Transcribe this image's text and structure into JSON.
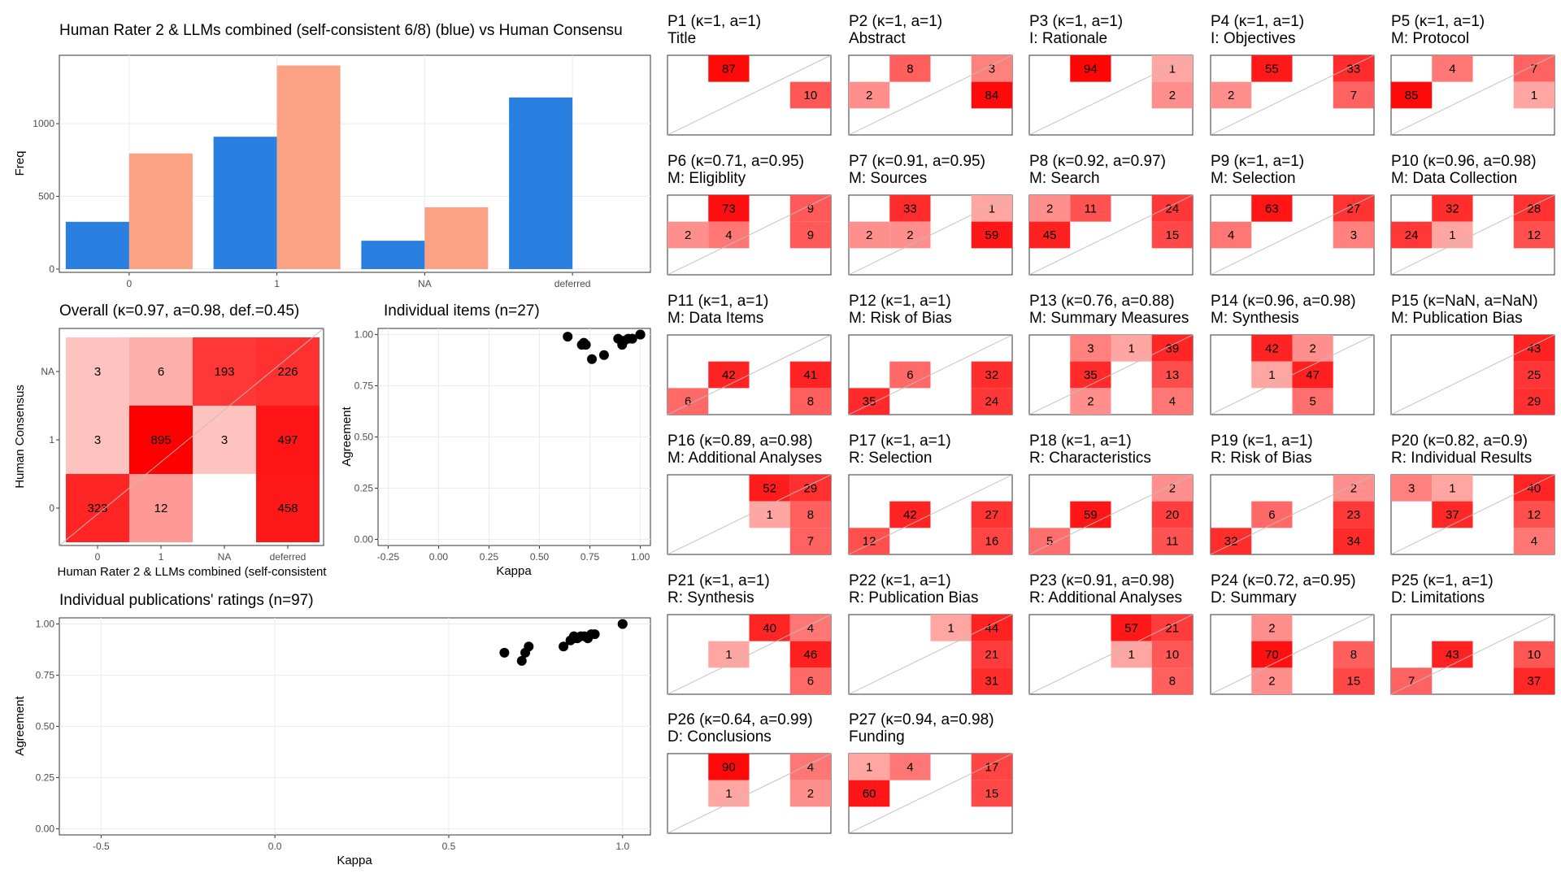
{
  "chart_data": [
    {
      "type": "bar",
      "title": "Human Rater 2 & LLMs combined (self-consistent 6/8) (blue) vs Human Consensu",
      "xlabel": "",
      "ylabel": "Freq",
      "categories": [
        "0",
        "1",
        "NA",
        "deferred"
      ],
      "yticks": [
        "0",
        "500",
        "1000"
      ],
      "ylim": [
        0,
        1470
      ],
      "series": [
        {
          "color": "#2a80e0",
          "values": [
            325,
            910,
            195,
            1180
          ]
        },
        {
          "color": "#fba184",
          "values": [
            795,
            1400,
            425,
            0
          ]
        }
      ]
    },
    {
      "type": "heatmap",
      "title": "Overall (κ=0.97, a=0.98, def.=0.45)",
      "xlabel": "Human Rater 2 & LLMs combined (self-consistent",
      "ylabel": "Human Consensus",
      "x_categories": [
        "0",
        "1",
        "NA",
        "deferred"
      ],
      "y_categories": [
        "0",
        "1",
        "NA"
      ],
      "cells": [
        {
          "x": "0",
          "y": "0",
          "value": 323
        },
        {
          "x": "1",
          "y": "0",
          "value": 12
        },
        {
          "x": "deferred",
          "y": "0",
          "value": 458
        },
        {
          "x": "0",
          "y": "1",
          "value": 3
        },
        {
          "x": "1",
          "y": "1",
          "value": 895
        },
        {
          "x": "NA",
          "y": "1",
          "value": 3
        },
        {
          "x": "deferred",
          "y": "1",
          "value": 497
        },
        {
          "x": "0",
          "y": "NA",
          "value": 3
        },
        {
          "x": "1",
          "y": "NA",
          "value": 6
        },
        {
          "x": "NA",
          "y": "NA",
          "value": 193
        },
        {
          "x": "deferred",
          "y": "NA",
          "value": 226
        }
      ]
    },
    {
      "type": "scatter",
      "title": "Individual items (n=27)",
      "xlabel": "Kappa",
      "ylabel": "Agreement",
      "xlim": [
        -0.3,
        1.05
      ],
      "ylim": [
        -0.03,
        1.03
      ],
      "xticks": [
        "-0.25",
        "0.00",
        "0.25",
        "0.50",
        "0.75",
        "1.00"
      ],
      "yticks": [
        "0.00",
        "0.25",
        "0.50",
        "0.75",
        "1.00"
      ],
      "x": [
        0.64,
        0.71,
        0.72,
        0.73,
        0.76,
        0.82,
        0.89,
        0.91,
        0.92,
        0.94,
        0.96,
        0.96,
        1.0,
        1.0,
        1.0
      ],
      "y": [
        0.99,
        0.95,
        0.96,
        0.95,
        0.88,
        0.9,
        0.98,
        0.95,
        0.97,
        0.98,
        0.98,
        0.98,
        1.0,
        1.0,
        1.0
      ]
    },
    {
      "type": "scatter",
      "title": "Individual publications' ratings (n=97)",
      "xlabel": "Kappa",
      "ylabel": "Agreement",
      "xlim": [
        -0.62,
        1.08
      ],
      "ylim": [
        -0.03,
        1.03
      ],
      "xticks": [
        "-0.5",
        "0.0",
        "0.5",
        "1.0"
      ],
      "yticks": [
        "0.00",
        "0.25",
        "0.50",
        "0.75",
        "1.00"
      ],
      "x": [
        0.66,
        0.71,
        0.72,
        0.73,
        0.83,
        0.85,
        0.86,
        0.86,
        0.87,
        0.88,
        0.89,
        0.9,
        0.91,
        0.92,
        1.0,
        1.0
      ],
      "y": [
        0.86,
        0.82,
        0.86,
        0.89,
        0.89,
        0.92,
        0.94,
        0.93,
        0.93,
        0.94,
        0.94,
        0.93,
        0.95,
        0.95,
        1.0,
        1.0
      ]
    }
  ],
  "facets": [
    {
      "title": "P1 (κ=1, a=1)",
      "subtitle": "Title",
      "cells": [
        [
          1,
          2,
          "87"
        ],
        [
          3,
          1,
          "10"
        ]
      ]
    },
    {
      "title": "P2 (κ=1, a=1)",
      "subtitle": "Abstract",
      "cells": [
        [
          1,
          2,
          "8"
        ],
        [
          3,
          2,
          "3"
        ],
        [
          0,
          1,
          "2"
        ],
        [
          3,
          1,
          "84"
        ]
      ]
    },
    {
      "title": "P3 (κ=1, a=1)",
      "subtitle": "I: Rationale",
      "cells": [
        [
          1,
          2,
          "94"
        ],
        [
          3,
          2,
          "1"
        ],
        [
          3,
          1,
          "2"
        ]
      ]
    },
    {
      "title": "P4 (κ=1, a=1)",
      "subtitle": "I: Objectives",
      "cells": [
        [
          1,
          2,
          "55"
        ],
        [
          3,
          2,
          "33"
        ],
        [
          0,
          1,
          "2"
        ],
        [
          3,
          1,
          "7"
        ]
      ]
    },
    {
      "title": "P5 (κ=1, a=1)",
      "subtitle": "M: Protocol",
      "cells": [
        [
          1,
          2,
          "4"
        ],
        [
          3,
          2,
          "7"
        ],
        [
          0,
          1,
          "85"
        ],
        [
          3,
          1,
          "1"
        ]
      ]
    },
    {
      "title": "P6 (κ=0.71, a=0.95)",
      "subtitle": "M: Eligiblity",
      "cells": [
        [
          1,
          2,
          "73"
        ],
        [
          3,
          2,
          "9"
        ],
        [
          0,
          1,
          "2"
        ],
        [
          1,
          1,
          "4"
        ],
        [
          3,
          1,
          "9"
        ]
      ]
    },
    {
      "title": "P7 (κ=0.91, a=0.95)",
      "subtitle": "M: Sources",
      "cells": [
        [
          1,
          2,
          "33"
        ],
        [
          3,
          2,
          "1"
        ],
        [
          0,
          1,
          "2"
        ],
        [
          1,
          1,
          "2"
        ],
        [
          3,
          1,
          "59"
        ]
      ]
    },
    {
      "title": "P8 (κ=0.92, a=0.97)",
      "subtitle": "M: Search",
      "cells": [
        [
          0,
          2,
          "2"
        ],
        [
          1,
          2,
          "11"
        ],
        [
          3,
          2,
          "24"
        ],
        [
          0,
          1,
          "45"
        ],
        [
          3,
          1,
          "15"
        ]
      ]
    },
    {
      "title": "P9 (κ=1, a=1)",
      "subtitle": "M: Selection",
      "cells": [
        [
          1,
          2,
          "63"
        ],
        [
          3,
          2,
          "27"
        ],
        [
          0,
          1,
          "4"
        ],
        [
          3,
          1,
          "3"
        ]
      ]
    },
    {
      "title": "P10 (κ=0.96, a=0.98)",
      "subtitle": "M: Data Collection",
      "cells": [
        [
          1,
          2,
          "32"
        ],
        [
          3,
          2,
          "28"
        ],
        [
          0,
          1,
          "24"
        ],
        [
          1,
          1,
          "1"
        ],
        [
          3,
          1,
          "12"
        ]
      ]
    },
    {
      "title": "P11 (κ=1, a=1)",
      "subtitle": "M: Data Items",
      "cells": [
        [
          1,
          1,
          "42"
        ],
        [
          3,
          1,
          "41"
        ],
        [
          0,
          0,
          "6"
        ],
        [
          3,
          0,
          "8"
        ]
      ]
    },
    {
      "title": "P12 (κ=1, a=1)",
      "subtitle": "M: Risk of Bias",
      "cells": [
        [
          1,
          1,
          "6"
        ],
        [
          3,
          1,
          "32"
        ],
        [
          0,
          0,
          "35"
        ],
        [
          3,
          0,
          "24"
        ]
      ]
    },
    {
      "title": "P13 (κ=0.76, a=0.88)",
      "subtitle": "M: Summary Measures",
      "cells": [
        [
          1,
          2,
          "3"
        ],
        [
          2,
          2,
          "1"
        ],
        [
          3,
          2,
          "39"
        ],
        [
          1,
          1,
          "35"
        ],
        [
          3,
          1,
          "13"
        ],
        [
          1,
          0,
          "2"
        ],
        [
          3,
          0,
          "4"
        ]
      ]
    },
    {
      "title": "P14 (κ=0.96, a=0.98)",
      "subtitle": "M: Synthesis",
      "cells": [
        [
          1,
          2,
          "42"
        ],
        [
          2,
          2,
          "2"
        ],
        [
          1,
          1,
          "1"
        ],
        [
          2,
          1,
          "47"
        ],
        [
          2,
          0,
          "5"
        ]
      ]
    },
    {
      "title": "P15 (κ=NaN, a=NaN)",
      "subtitle": "M: Publication Bias",
      "cells": [
        [
          3,
          2,
          "43"
        ],
        [
          3,
          1,
          "25"
        ],
        [
          3,
          0,
          "29"
        ]
      ]
    },
    {
      "title": "P16 (κ=0.89, a=0.98)",
      "subtitle": "M: Additional Analyses",
      "cells": [
        [
          2,
          2,
          "52"
        ],
        [
          3,
          2,
          "29"
        ],
        [
          2,
          1,
          "1"
        ],
        [
          3,
          1,
          "8"
        ],
        [
          3,
          0,
          "7"
        ]
      ]
    },
    {
      "title": "P17 (κ=1, a=1)",
      "subtitle": "R: Selection",
      "cells": [
        [
          1,
          1,
          "42"
        ],
        [
          3,
          1,
          "27"
        ],
        [
          0,
          0,
          "12"
        ],
        [
          3,
          0,
          "16"
        ]
      ]
    },
    {
      "title": "P18 (κ=1, a=1)",
      "subtitle": "R: Characteristics",
      "cells": [
        [
          3,
          2,
          "2"
        ],
        [
          1,
          1,
          "59"
        ],
        [
          3,
          1,
          "20"
        ],
        [
          0,
          0,
          "5"
        ],
        [
          3,
          0,
          "11"
        ]
      ]
    },
    {
      "title": "P19 (κ=1, a=1)",
      "subtitle": "R: Risk of Bias",
      "cells": [
        [
          3,
          2,
          "2"
        ],
        [
          1,
          1,
          "6"
        ],
        [
          3,
          1,
          "23"
        ],
        [
          0,
          0,
          "32"
        ],
        [
          3,
          0,
          "34"
        ]
      ]
    },
    {
      "title": "P20 (κ=0.82, a=0.9)",
      "subtitle": "R: Individual Results",
      "cells": [
        [
          0,
          2,
          "3"
        ],
        [
          1,
          2,
          "1"
        ],
        [
          3,
          2,
          "40"
        ],
        [
          1,
          1,
          "37"
        ],
        [
          3,
          1,
          "12"
        ],
        [
          3,
          0,
          "4"
        ]
      ]
    },
    {
      "title": "P21 (κ=1, a=1)",
      "subtitle": "R: Synthesis",
      "cells": [
        [
          2,
          2,
          "40"
        ],
        [
          3,
          2,
          "4"
        ],
        [
          1,
          1,
          "1"
        ],
        [
          3,
          1,
          "46"
        ],
        [
          3,
          0,
          "6"
        ]
      ]
    },
    {
      "title": "P22 (κ=1, a=1)",
      "subtitle": "R: Publication Bias",
      "cells": [
        [
          2,
          2,
          "1"
        ],
        [
          3,
          2,
          "44"
        ],
        [
          3,
          1,
          "21"
        ],
        [
          3,
          0,
          "31"
        ]
      ]
    },
    {
      "title": "P23 (κ=0.91, a=0.98)",
      "subtitle": "R: Additional Analyses",
      "cells": [
        [
          2,
          2,
          "57"
        ],
        [
          3,
          2,
          "21"
        ],
        [
          2,
          1,
          "1"
        ],
        [
          3,
          1,
          "10"
        ],
        [
          3,
          0,
          "8"
        ]
      ]
    },
    {
      "title": "P24 (κ=0.72, a=0.95)",
      "subtitle": "D: Summary",
      "cells": [
        [
          1,
          2,
          "2"
        ],
        [
          1,
          1,
          "70"
        ],
        [
          3,
          1,
          "8"
        ],
        [
          1,
          0,
          "2"
        ],
        [
          3,
          0,
          "15"
        ]
      ]
    },
    {
      "title": "P25 (κ=1, a=1)",
      "subtitle": "D: Limitations",
      "cells": [
        [
          1,
          1,
          "43"
        ],
        [
          3,
          1,
          "10"
        ],
        [
          0,
          0,
          "7"
        ],
        [
          3,
          0,
          "37"
        ]
      ]
    },
    {
      "title": "P26 (κ=0.64, a=0.99)",
      "subtitle": "D: Conclusions",
      "cells": [
        [
          1,
          2,
          "90"
        ],
        [
          3,
          2,
          "4"
        ],
        [
          1,
          1,
          "1"
        ],
        [
          3,
          1,
          "2"
        ]
      ]
    },
    {
      "title": "P27 (κ=0.94, a=0.98)",
      "subtitle": "Funding",
      "cells": [
        [
          0,
          2,
          "1"
        ],
        [
          1,
          2,
          "4"
        ],
        [
          3,
          2,
          "17"
        ],
        [
          0,
          1,
          "60"
        ],
        [
          3,
          1,
          "15"
        ]
      ]
    }
  ]
}
